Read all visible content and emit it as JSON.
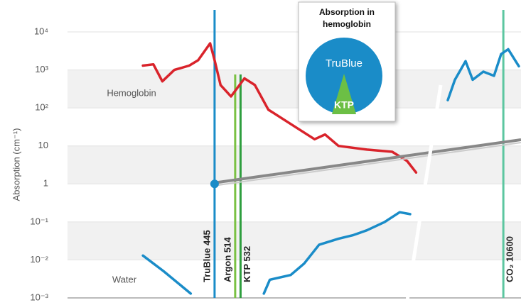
{
  "chart_data": {
    "type": "line",
    "y_label": "Absorption (cm⁻¹)",
    "log_y": true,
    "axis_break": true,
    "x_segments": [
      [
        200,
        1150
      ],
      [
        2500,
        12500
      ]
    ],
    "ylim": [
      0.001,
      10000
    ],
    "yticks": [
      {
        "value": 10000,
        "label": "10⁴"
      },
      {
        "value": 1000,
        "label": "10³"
      },
      {
        "value": 100,
        "label": "10²"
      },
      10,
      1,
      {
        "value": 0.1,
        "label": "10⁻¹"
      },
      {
        "value": 0.01,
        "label": "10⁻²"
      },
      {
        "value": 0.001,
        "label": "10⁻³"
      }
    ],
    "grid": true,
    "series": [
      {
        "name": "Hemoglobin",
        "color": "#d9232b",
        "x": [
          205,
          240,
          270,
          310,
          360,
          390,
          430,
          445,
          465,
          500,
          545,
          580,
          625,
          720,
          780,
          815,
          860,
          955,
          1040,
          1090,
          1120
        ],
        "values": [
          1300,
          1400,
          500,
          1000,
          1300,
          1800,
          5000,
          1800,
          400,
          200,
          600,
          400,
          90,
          30,
          15,
          20,
          10,
          8,
          7,
          4,
          2
        ]
      },
      {
        "name": "Water",
        "color": "#1a8cc8",
        "x": [
          205,
          275,
          365,
          500,
          610,
          630,
          700,
          745,
          795,
          860,
          910,
          955,
          1015,
          1065,
          1100,
          2500,
          3800,
          4675,
          5980,
          6850,
          8150,
          9460,
          10330,
          11200,
          12500
        ],
        "values": [
          0.013,
          0.005,
          0.0013,
          null,
          0.0013,
          0.003,
          0.004,
          0.008,
          0.025,
          0.036,
          0.045,
          0.06,
          0.1,
          0.18,
          0.16,
          null,
          160,
          550,
          1700,
          550,
          900,
          700,
          2600,
          3500,
          1250
        ]
      }
    ],
    "lasers": [
      {
        "name": "TruBlue 445",
        "x": 445,
        "color": "#1a8cc8",
        "marker_value": 1
      },
      {
        "name": "Argon 514",
        "x": 514,
        "color": "#7ac143"
      },
      {
        "name": "KTP 532",
        "x": 532,
        "color": "#2e9e3e"
      },
      {
        "name": "CO₂ 10600",
        "x": 10600,
        "color": "#5cc6a0"
      }
    ],
    "inset": {
      "title_lines": [
        "Absorption in",
        "hemoglobin"
      ],
      "labels": [
        "TruBlue",
        "KTP"
      ]
    }
  }
}
